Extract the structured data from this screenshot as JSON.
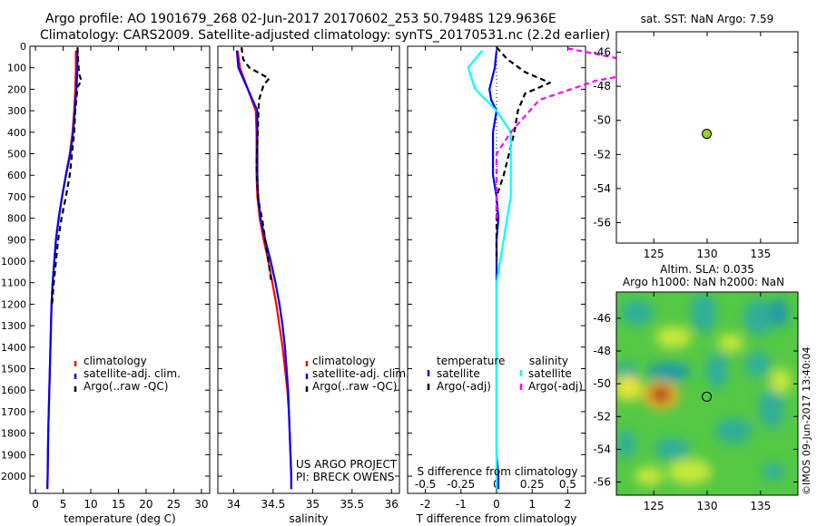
{
  "header": {
    "line1": "Argo profile: AO 1901679_268 02-Jun-2017 20170602_253 50.7948S 129.9636E",
    "line2": "Climatology: CARS2009. Satellite-adjusted climatology: synTS_20170531.nc (2.2d earlier)"
  },
  "credits": {
    "project": "US ARGO PROJECT",
    "pi": "PI: BRECK OWENS",
    "imos": "©IMOS 09-Jun-2017 13:40:04"
  },
  "map_top_title": "sat. SST: NaN Argo: 7.59",
  "map_bottom_title1": "Altim. SLA: 0.035",
  "map_bottom_title2": "Argo h1000: NaN h2000: NaN",
  "colors": {
    "climatology": "#ff0000",
    "satellite": "#0000ff",
    "argo": "#000000",
    "sal_satellite": "#00ffff",
    "sal_argo": "#ff00ff",
    "marker_fill": "#9acd32"
  },
  "chart_data": [
    {
      "type": "line",
      "xlabel": "temperature (deg C)",
      "xlim": [
        -1,
        31.5
      ],
      "xticks": [
        0,
        5,
        10,
        15,
        20,
        25,
        30
      ],
      "ylim": [
        0,
        2080
      ],
      "yticks": [
        0,
        100,
        200,
        300,
        400,
        500,
        600,
        700,
        800,
        900,
        1000,
        1100,
        1200,
        1300,
        1400,
        1500,
        1600,
        1700,
        1800,
        1900,
        2000
      ],
      "y_reversed": true,
      "legend_placement": "bottom-center",
      "series": [
        {
          "name": "climatology",
          "color": "#ff0000",
          "dash": false,
          "x": [
            7.3,
            7.3,
            7.2,
            7.0,
            6.7,
            6.2,
            5.5,
            4.8,
            4.2,
            3.7,
            3.4,
            3.1,
            2.9,
            2.8,
            2.7,
            2.6,
            2.5,
            2.4,
            2.3,
            2.25,
            2.2,
            2.15
          ],
          "y": [
            20,
            100,
            200,
            300,
            400,
            500,
            600,
            700,
            800,
            900,
            1000,
            1100,
            1200,
            1300,
            1400,
            1500,
            1600,
            1700,
            1800,
            1900,
            2000,
            2060
          ]
        },
        {
          "name": "satellite-adj. clim.",
          "color": "#0000ff",
          "dash": false,
          "x": [
            7.6,
            7.6,
            7.4,
            7.1,
            6.8,
            6.3,
            5.5,
            4.8,
            4.2,
            3.7,
            3.4,
            3.1,
            2.9,
            2.8,
            2.7,
            2.6,
            2.5,
            2.4,
            2.3,
            2.25,
            2.2,
            2.15
          ],
          "y": [
            20,
            100,
            200,
            300,
            400,
            500,
            600,
            700,
            800,
            900,
            1000,
            1100,
            1200,
            1300,
            1400,
            1500,
            1600,
            1700,
            1800,
            1900,
            2000,
            2060
          ]
        },
        {
          "name": "Argo(..raw -QC)",
          "color": "#000000",
          "dash": true,
          "x": [
            7.6,
            7.7,
            7.9,
            8.3,
            7.6,
            7.2,
            7.0,
            6.6,
            6.2,
            5.5,
            4.7,
            4.1,
            3.7,
            3.3,
            3.0
          ],
          "y": [
            5,
            60,
            130,
            160,
            190,
            300,
            400,
            500,
            600,
            700,
            800,
            900,
            1000,
            1100,
            1200
          ]
        }
      ]
    },
    {
      "type": "line",
      "xlabel": "salinity",
      "xlim": [
        33.8,
        36.1
      ],
      "xticks": [
        34,
        34.5,
        35,
        35.5,
        36
      ],
      "ylim": [
        0,
        2080
      ],
      "y_reversed": true,
      "legend_placement": "bottom-center",
      "series": [
        {
          "name": "climatology",
          "color": "#ff0000",
          "dash": false,
          "x": [
            34.05,
            34.08,
            34.18,
            34.28,
            34.29,
            34.29,
            34.29,
            34.3,
            34.33,
            34.38,
            34.44,
            34.49,
            34.54,
            34.58,
            34.62,
            34.65,
            34.68,
            34.7,
            34.71,
            34.72,
            34.73,
            34.73
          ],
          "y": [
            20,
            100,
            200,
            300,
            400,
            500,
            600,
            700,
            800,
            900,
            1000,
            1100,
            1200,
            1300,
            1400,
            1500,
            1600,
            1700,
            1800,
            1900,
            2000,
            2060
          ]
        },
        {
          "name": "satellite-adj. clim.",
          "color": "#0000ff",
          "dash": false,
          "x": [
            34.04,
            34.06,
            34.18,
            34.3,
            34.3,
            34.3,
            34.3,
            34.31,
            34.34,
            34.4,
            34.47,
            34.53,
            34.58,
            34.62,
            34.65,
            34.67,
            34.69,
            34.7,
            34.71,
            34.72,
            34.73,
            34.73
          ],
          "y": [
            20,
            100,
            200,
            300,
            400,
            500,
            600,
            700,
            800,
            900,
            1000,
            1100,
            1200,
            1300,
            1400,
            1500,
            1600,
            1700,
            1800,
            1900,
            2000,
            2060
          ]
        },
        {
          "name": "Argo(..raw -QC)",
          "color": "#000000",
          "dash": true,
          "x": [
            34.1,
            34.12,
            34.2,
            34.45,
            34.38,
            34.32,
            34.31,
            34.3,
            34.29,
            34.3,
            34.31,
            34.33,
            34.36,
            34.4,
            34.44,
            34.48
          ],
          "y": [
            5,
            60,
            100,
            150,
            180,
            250,
            350,
            450,
            550,
            650,
            700,
            750,
            800,
            900,
            1000,
            1100
          ]
        }
      ]
    },
    {
      "type": "line",
      "xlabel": "T difference from climatology",
      "xlabel_top": "S difference from climatology",
      "xlim": [
        -2.5,
        2.5
      ],
      "xticks": [
        -2,
        -1,
        0,
        1,
        2
      ],
      "xticks_top": [
        "-0.5",
        "-0.25",
        "0",
        "0.25",
        "0.5"
      ],
      "ylim": [
        0,
        2080
      ],
      "y_reversed": true,
      "legend_title_left": "temperature",
      "legend_title_right": "salinity",
      "series": [
        {
          "name": "satellite",
          "group": "temperature",
          "color": "#0000ff",
          "dash": false,
          "x": [
            0.0,
            -0.05,
            -0.2,
            -0.15,
            0.0,
            -0.1,
            -0.1,
            -0.1,
            0.0,
            0.05,
            0.0,
            0.0,
            0.0,
            0.0,
            0.0,
            0.0,
            0.0,
            0.0,
            0.05,
            0.05
          ],
          "y": [
            20,
            100,
            200,
            250,
            300,
            400,
            500,
            600,
            700,
            800,
            900,
            1000,
            1200,
            1400,
            1600,
            1700,
            1800,
            1900,
            2000,
            2060
          ]
        },
        {
          "name": "Argo(-adj)",
          "group": "temperature",
          "color": "#000000",
          "dash": true,
          "x": [
            0.0,
            0.3,
            0.8,
            1.5,
            0.8,
            0.6,
            0.5,
            0.35,
            0.2,
            0.0,
            0.0,
            0.0,
            0.0
          ],
          "y": [
            5,
            60,
            120,
            170,
            220,
            300,
            400,
            500,
            600,
            700,
            800,
            900,
            1000
          ]
        },
        {
          "name": "satellite",
          "group": "salinity",
          "color": "#00ffff",
          "dash": false,
          "x": [
            -0.1,
            -0.2,
            -0.15,
            0.0,
            0.1,
            0.1,
            0.1,
            0.05,
            0.0,
            0.0,
            0.0,
            0.0,
            0.0,
            0.0
          ],
          "y": [
            20,
            100,
            200,
            300,
            400,
            500,
            700,
            900,
            1100,
            1300,
            1500,
            1700,
            1900,
            2060
          ]
        },
        {
          "name": "Argo(-adj)",
          "group": "salinity",
          "color": "#ff00ff",
          "dash": true,
          "x": [
            0.5,
            0.8,
            1.2,
            0.7,
            0.3,
            0.1,
            0.0,
            0.0,
            0.0,
            0.0
          ],
          "y": [
            10,
            50,
            100,
            160,
            250,
            400,
            500,
            600,
            700,
            800
          ]
        }
      ]
    },
    {
      "type": "scatter",
      "xlim": [
        121.5,
        138.5
      ],
      "xticks": [
        125,
        130,
        135
      ],
      "ylim": [
        -57.2,
        -44.8
      ],
      "yticks": [
        -46,
        -48,
        -50,
        -52,
        -54,
        -56
      ],
      "points": [
        {
          "x": 129.96,
          "y": -50.79
        }
      ]
    },
    {
      "type": "heatmap",
      "xlim": [
        121.5,
        138.5
      ],
      "xticks": [
        125,
        130,
        135
      ],
      "ylim": [
        -56.8,
        -44.4
      ],
      "yticks": [
        -46,
        -48,
        -50,
        -52,
        -54,
        -56
      ],
      "points": [
        {
          "x": 129.96,
          "y": -50.79
        }
      ]
    }
  ]
}
